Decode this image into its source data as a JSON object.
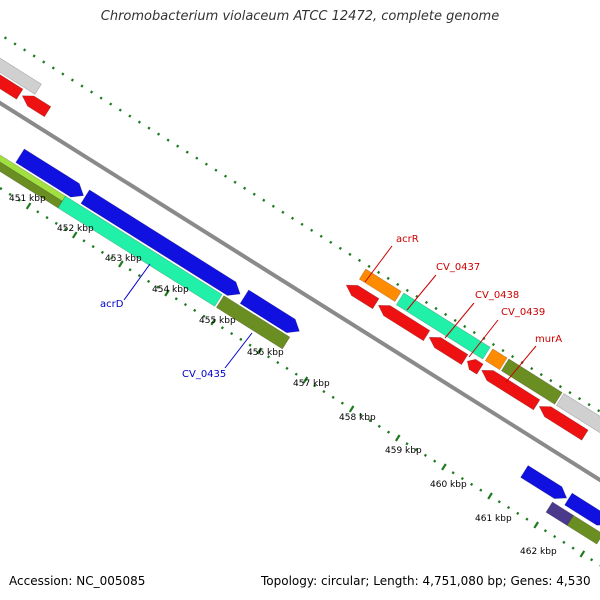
{
  "title": "Chromobacterium violaceum ATCC 12472, complete genome",
  "footer": {
    "accession": "Accession: NC_005085",
    "topology": "Topology: circular; Length: 4,751,080 bp; Genes: 4,530"
  },
  "colors": {
    "backbone": "#8a8a8a",
    "tick": "#1e7a1e",
    "forward_label": "#0000cc",
    "reverse_label": "#cc0000",
    "cds_blue": "#1010e0",
    "cds_cyan": "#20f0a8",
    "cds_olive": "#6b8e23",
    "cds_red": "#ee1111",
    "cds_orange": "#ff8c00",
    "cds_gray": "#d0d0d0",
    "cds_lime": "#a0e040",
    "cds_purple": "#4b3a8c"
  },
  "kbp_labels": [
    "451 kbp",
    "452 kbp",
    "453 kbp",
    "454 kbp",
    "455 kbp",
    "456 kbp",
    "457 kbp",
    "458 kbp",
    "459 kbp",
    "460 kbp",
    "461 kbp",
    "462 kbp"
  ],
  "gene_labels": [
    {
      "text": "acrD",
      "strand": "forward"
    },
    {
      "text": "CV_0435",
      "strand": "forward"
    },
    {
      "text": "acrR",
      "strand": "reverse"
    },
    {
      "text": "CV_0437",
      "strand": "reverse"
    },
    {
      "text": "CV_0438",
      "strand": "reverse"
    },
    {
      "text": "CV_0439",
      "strand": "reverse"
    },
    {
      "text": "murA",
      "strand": "reverse"
    }
  ]
}
